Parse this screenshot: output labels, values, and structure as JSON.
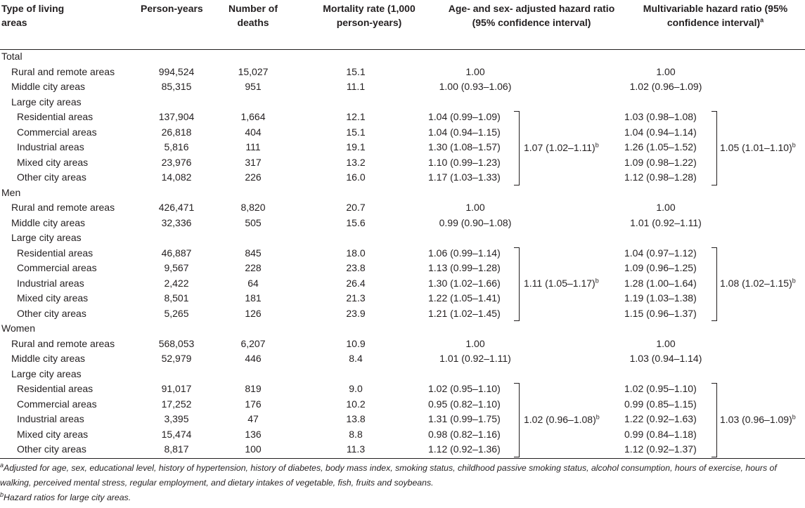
{
  "headers": {
    "type": "Type of living areas",
    "person_years": "Person-years",
    "deaths": "Number of deaths",
    "mortality": "Mortality rate (1,000 person-years)",
    "adjusted_hr": "Age- and sex- adjusted hazard ratio (95% confidence interval)",
    "multi_hr": "Multivariable hazard ratio (95% confidence interval)",
    "multi_hr_sup": "a"
  },
  "sections": [
    {
      "label": "Total",
      "rows": [
        {
          "label": "Rural and remote areas",
          "person_years": "994,524",
          "deaths": "15,027",
          "mortality": "15.1",
          "adj_hr": "1.00",
          "multi_hr": "1.00"
        },
        {
          "label": "Middle city areas",
          "person_years": "85,315",
          "deaths": "951",
          "mortality": "11.1",
          "adj_hr": "1.00 (0.93–1.06)",
          "multi_hr": "1.02 (0.96–1.09)"
        },
        {
          "label": "Large city areas",
          "person_years": "",
          "deaths": "",
          "mortality": "",
          "adj_hr": "",
          "multi_hr": ""
        },
        {
          "label": "Residential areas",
          "person_years": "137,904",
          "deaths": "1,664",
          "mortality": "12.1",
          "adj_hr": "1.04 (0.99–1.09)",
          "multi_hr": "1.03 (0.98–1.08)"
        },
        {
          "label": "Commercial areas",
          "person_years": "26,818",
          "deaths": "404",
          "mortality": "15.1",
          "adj_hr": "1.04 (0.94–1.15)",
          "multi_hr": "1.04 (0.94–1.14)"
        },
        {
          "label": "Industrial areas",
          "person_years": "5,816",
          "deaths": "111",
          "mortality": "19.1",
          "adj_hr": "1.30 (1.08–1.57)",
          "multi_hr": "1.26 (1.05–1.52)"
        },
        {
          "label": "Mixed city areas",
          "person_years": "23,976",
          "deaths": "317",
          "mortality": "13.2",
          "adj_hr": "1.10 (0.99–1.23)",
          "multi_hr": "1.09 (0.98–1.22)"
        },
        {
          "label": "Other city areas",
          "person_years": "14,082",
          "deaths": "226",
          "mortality": "16.0",
          "adj_hr": "1.17 (1.03–1.33)",
          "multi_hr": "1.12 (0.98–1.28)"
        }
      ],
      "pooled_adj": "1.07 (1.02–1.11)",
      "pooled_multi": "1.05 (1.01–1.10)"
    },
    {
      "label": "Men",
      "rows": [
        {
          "label": "Rural and remote areas",
          "person_years": "426,471",
          "deaths": "8,820",
          "mortality": "20.7",
          "adj_hr": "1.00",
          "multi_hr": "1.00"
        },
        {
          "label": "Middle city areas",
          "person_years": "32,336",
          "deaths": "505",
          "mortality": "15.6",
          "adj_hr": "0.99 (0.90–1.08)",
          "multi_hr": "1.01 (0.92–1.11)"
        },
        {
          "label": "Large city areas",
          "person_years": "",
          "deaths": "",
          "mortality": "",
          "adj_hr": "",
          "multi_hr": ""
        },
        {
          "label": "Residential areas",
          "person_years": "46,887",
          "deaths": "845",
          "mortality": "18.0",
          "adj_hr": "1.06 (0.99–1.14)",
          "multi_hr": "1.04 (0.97–1.12)"
        },
        {
          "label": "Commercial areas",
          "person_years": "9,567",
          "deaths": "228",
          "mortality": "23.8",
          "adj_hr": "1.13 (0.99–1.28)",
          "multi_hr": "1.09 (0.96–1.25)"
        },
        {
          "label": "Industrial areas",
          "person_years": "2,422",
          "deaths": "64",
          "mortality": "26.4",
          "adj_hr": "1.30 (1.02–1.66)",
          "multi_hr": "1.28 (1.00–1.64)"
        },
        {
          "label": "Mixed city areas",
          "person_years": "8,501",
          "deaths": "181",
          "mortality": "21.3",
          "adj_hr": "1.22 (1.05–1.41)",
          "multi_hr": "1.19 (1.03–1.38)"
        },
        {
          "label": "Other city areas",
          "person_years": "5,265",
          "deaths": "126",
          "mortality": "23.9",
          "adj_hr": "1.21 (1.02–1.45)",
          "multi_hr": "1.15 (0.96–1.37)"
        }
      ],
      "pooled_adj": "1.11 (1.05–1.17)",
      "pooled_multi": "1.08 (1.02–1.15)"
    },
    {
      "label": "Women",
      "rows": [
        {
          "label": "Rural and remote areas",
          "person_years": "568,053",
          "deaths": "6,207",
          "mortality": "10.9",
          "adj_hr": "1.00",
          "multi_hr": "1.00"
        },
        {
          "label": "Middle city areas",
          "person_years": "52,979",
          "deaths": "446",
          "mortality": "8.4",
          "adj_hr": "1.01 (0.92–1.11)",
          "multi_hr": "1.03 (0.94–1.14)"
        },
        {
          "label": "Large city areas",
          "person_years": "",
          "deaths": "",
          "mortality": "",
          "adj_hr": "",
          "multi_hr": ""
        },
        {
          "label": "Residential areas",
          "person_years": "91,017",
          "deaths": "819",
          "mortality": "9.0",
          "adj_hr": "1.02 (0.95–1.10)",
          "multi_hr": "1.02 (0.95–1.10)"
        },
        {
          "label": "Commercial areas",
          "person_years": "17,252",
          "deaths": "176",
          "mortality": "10.2",
          "adj_hr": "0.95 (0.82–1.10)",
          "multi_hr": "0.99 (0.85–1.15)"
        },
        {
          "label": "Industrial areas",
          "person_years": "3,395",
          "deaths": "47",
          "mortality": "13.8",
          "adj_hr": "1.31 (0.99–1.75)",
          "multi_hr": "1.22 (0.92–1.63)"
        },
        {
          "label": "Mixed city areas",
          "person_years": "15,474",
          "deaths": "136",
          "mortality": "8.8",
          "adj_hr": "0.98 (0.82–1.16)",
          "multi_hr": "0.99 (0.84–1.18)"
        },
        {
          "label": "Other city areas",
          "person_years": "8,817",
          "deaths": "100",
          "mortality": "11.3",
          "adj_hr": "1.12 (0.92–1.36)",
          "multi_hr": "1.12 (0.92–1.37)"
        }
      ],
      "pooled_adj": "1.02 (0.96–1.08)",
      "pooled_multi": "1.03 (0.96–1.09)"
    }
  ],
  "pooled_sup": "b",
  "footnotes": {
    "a_mark": "a",
    "a_text": "Adjusted for age, sex, educational level, history of hypertension, history of diabetes, body mass index, smoking status, childhood passive smoking status, alcohol consumption, hours of exercise, hours of walking, perceived mental stress, regular employment, and dietary intakes of vegetable, fish, fruits and soybeans.",
    "b_mark": "b",
    "b_text": "Hazard ratios for large city areas."
  }
}
